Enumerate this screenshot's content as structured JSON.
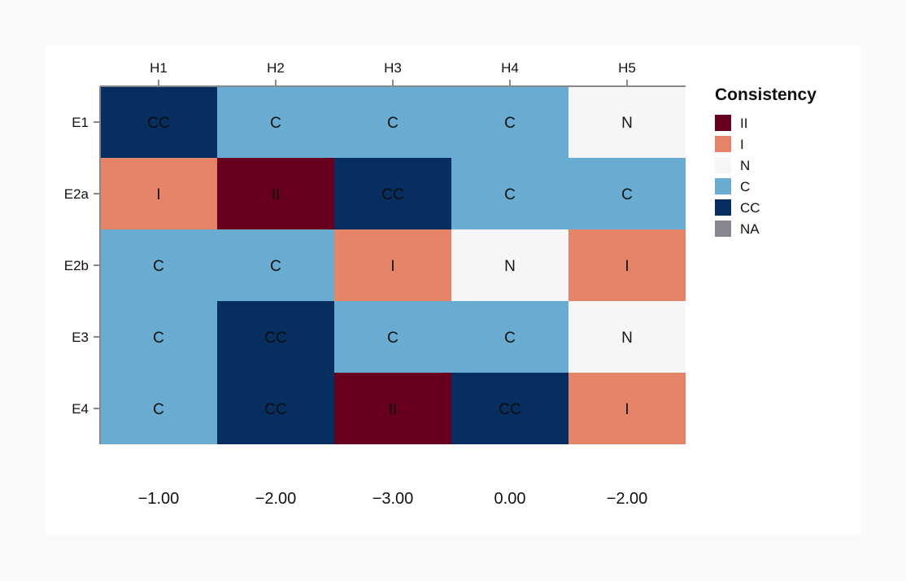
{
  "chart_data": {
    "type": "heatmap",
    "columns": [
      "H1",
      "H2",
      "H3",
      "H4",
      "H5"
    ],
    "rows": [
      "E1",
      "E2a",
      "E2b",
      "E3",
      "E4"
    ],
    "cells": [
      [
        "CC",
        "C",
        "C",
        "C",
        "N"
      ],
      [
        "I",
        "II",
        "CC",
        "C",
        "C"
      ],
      [
        "C",
        "C",
        "I",
        "N",
        "I"
      ],
      [
        "C",
        "CC",
        "C",
        "C",
        "N"
      ],
      [
        "C",
        "CC",
        "II",
        "CC",
        "I"
      ]
    ],
    "column_scores": [
      "−1.00",
      "−2.00",
      "−3.00",
      "0.00",
      "−2.00"
    ],
    "legend": {
      "title": "Consistency",
      "items": [
        {
          "label": "II",
          "color": "#67001f"
        },
        {
          "label": "I",
          "color": "#e6846a"
        },
        {
          "label": "N",
          "color": "#f6f6f6"
        },
        {
          "label": "C",
          "color": "#6aabd2"
        },
        {
          "label": "CC",
          "color": "#062e60"
        },
        {
          "label": "NA",
          "color": "#85868f"
        }
      ]
    }
  }
}
